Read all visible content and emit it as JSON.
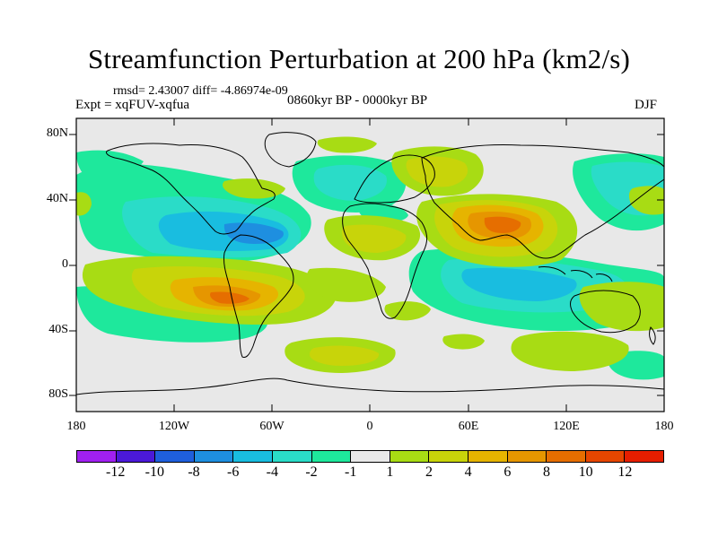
{
  "title": "Streamfunction Perturbation at 200 hPa (km2/s)",
  "stats": "rmsd= 2.43007 diff= -4.86974e-09",
  "experiment": "Expt = xqFUV-xqfua",
  "period": "0860kyr BP - 0000kyr BP",
  "season": "DJF",
  "lat_ticks": [
    "80N",
    "40N",
    "0",
    "40S",
    "80S"
  ],
  "lon_ticks": [
    "180",
    "120W",
    "60W",
    "0",
    "60E",
    "120E",
    "180"
  ],
  "colorbar": {
    "colors": [
      "#a020f0",
      "#4b19d8",
      "#1f5fdc",
      "#1e8fe0",
      "#19bde0",
      "#2adcc8",
      "#1ee89c",
      "#e8e8e8",
      "#a8dc14",
      "#c8d40a",
      "#e6b400",
      "#e69600",
      "#e66e00",
      "#e64600",
      "#e61e00"
    ],
    "labels": [
      "-12",
      "-10",
      "-8",
      "-6",
      "-4",
      "-2",
      "-1",
      "1",
      "2",
      "4",
      "6",
      "8",
      "10",
      "12"
    ]
  },
  "map": {
    "background": "#e8e8e8",
    "projection": "cylindrical equidistant",
    "lon_range": [
      -180,
      180
    ],
    "lat_range": [
      -90,
      90
    ]
  }
}
